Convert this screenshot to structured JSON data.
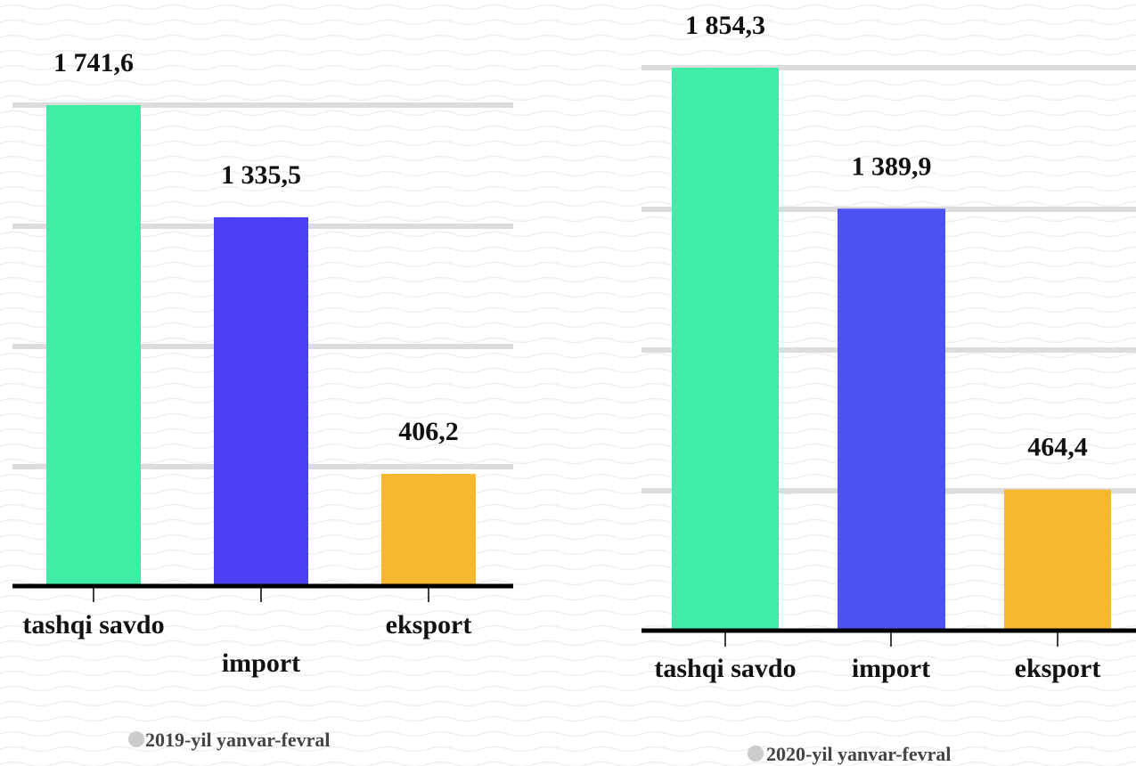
{
  "chart_data": [
    {
      "type": "bar",
      "categories": [
        "tashqi savdo",
        "import",
        "eksport"
      ],
      "values": [
        1741.6,
        1335.5,
        406.2
      ],
      "value_labels": [
        "1 741,6",
        "1 335,5",
        "406,2"
      ],
      "colors": [
        "#3fedA4",
        "#4b40f4",
        "#f5b82e"
      ],
      "legend": "2019-yil yanvar-fevral",
      "grid": true
    },
    {
      "type": "bar",
      "categories": [
        "tashqi savdo",
        "import",
        "eksport"
      ],
      "values": [
        1854.3,
        1389.9,
        464.4
      ],
      "value_labels": [
        "1 854,3",
        "1 389,9",
        "464,4"
      ],
      "colors": [
        "#40eda8",
        "#4f52f2",
        "#f5b82e"
      ],
      "legend": "2020-yil yanvar-fevral",
      "grid": true
    }
  ],
  "colors": {
    "legend_dot": "#cccccc",
    "gridline": "#dcdcdc",
    "axis": "#000000"
  }
}
